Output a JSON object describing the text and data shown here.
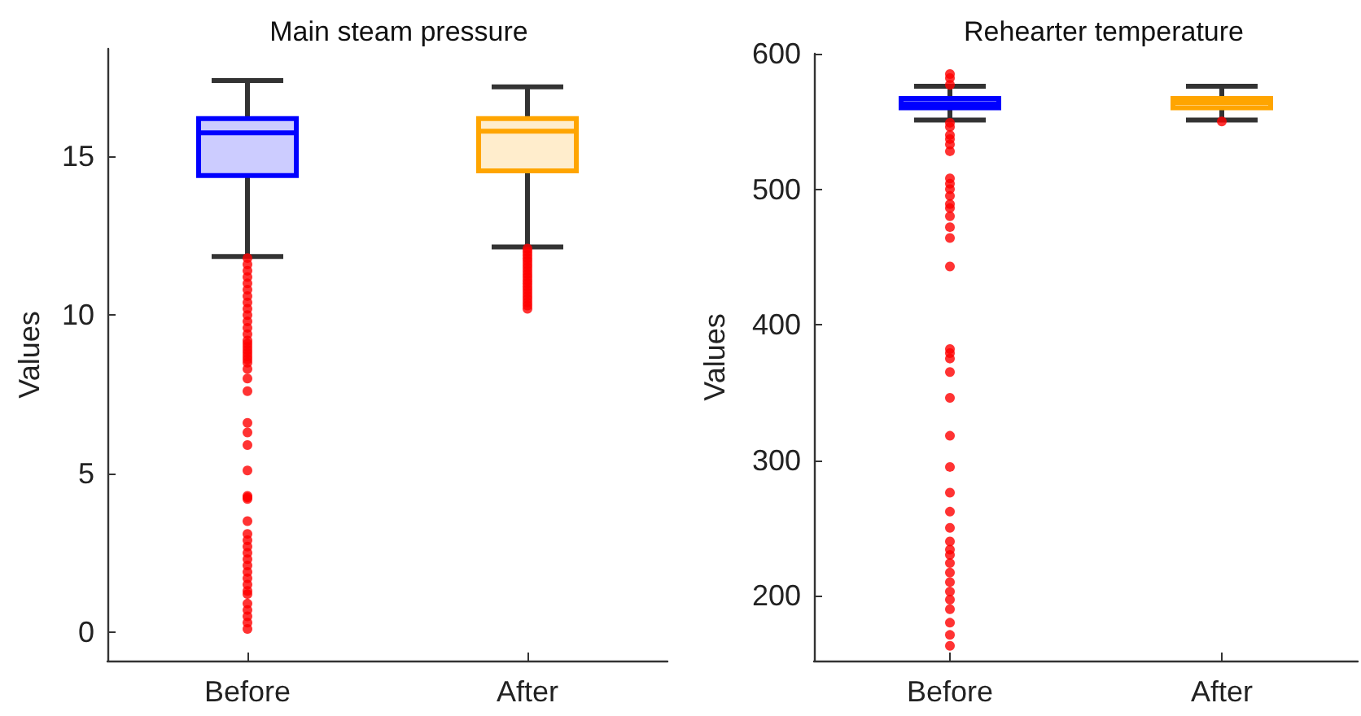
{
  "chart_data": [
    {
      "type": "box",
      "title": "Main steam pressure",
      "ylabel": "Values",
      "categories": [
        "Before",
        "After"
      ],
      "ylim": [
        -0.9,
        18.4
      ],
      "yticks": [
        0,
        5,
        10,
        15
      ],
      "grid": false,
      "series": [
        {
          "colors": [
            "#0000ff",
            "#ffa500"
          ],
          "boxes": [
            {
              "low": 11.85,
              "q1": 14.4,
              "median": 15.75,
              "q3": 16.2,
              "high": 17.4
            },
            {
              "low": 12.15,
              "q1": 14.55,
              "median": 15.8,
              "q3": 16.2,
              "high": 17.2
            }
          ]
        },
        {
          "type": "scatter",
          "color": "#ff0000",
          "marker": "circle",
          "x": [
            "Before",
            "Before",
            "Before",
            "Before",
            "Before",
            "Before",
            "Before",
            "Before",
            "Before",
            "Before",
            "Before",
            "Before",
            "Before",
            "Before",
            "Before",
            "Before",
            "Before",
            "Before",
            "Before",
            "Before",
            "Before",
            "Before",
            "Before",
            "Before",
            "Before",
            "Before",
            "Before",
            "Before",
            "Before",
            "Before",
            "Before",
            "Before",
            "Before",
            "Before",
            "Before",
            "Before",
            "Before",
            "Before",
            "Before",
            "Before",
            "Before",
            "Before",
            "Before",
            "Before",
            "Before",
            "Before",
            "Before",
            "Before",
            "After",
            "After",
            "After",
            "After",
            "After",
            "After",
            "After",
            "After",
            "After",
            "After",
            "After",
            "After",
            "After",
            "After",
            "After",
            "After",
            "After",
            "After",
            "After",
            "After"
          ],
          "values": [
            11.8,
            11.6,
            11.4,
            11.2,
            11.0,
            10.8,
            10.6,
            10.4,
            10.2,
            10.0,
            9.8,
            9.6,
            9.4,
            9.2,
            9.0,
            8.8,
            8.6,
            8.3,
            8.0,
            7.6,
            6.6,
            6.3,
            5.9,
            5.1,
            4.3,
            4.2,
            3.5,
            3.1,
            2.9,
            2.7,
            2.5,
            2.3,
            2.1,
            1.9,
            1.7,
            1.5,
            1.2,
            0.9,
            0.7,
            0.5,
            0.3,
            0.1,
            9.1,
            8.9,
            8.7,
            8.5,
            4.25,
            1.3,
            12.1,
            12.0,
            11.9,
            11.8,
            11.7,
            11.6,
            11.5,
            11.4,
            11.3,
            11.2,
            11.1,
            11.0,
            10.9,
            10.8,
            10.7,
            10.6,
            10.5,
            10.4,
            10.3,
            10.2
          ]
        }
      ]
    },
    {
      "type": "box",
      "title": "Rehearter temperature",
      "ylabel": "Values",
      "categories": [
        "Before",
        "After"
      ],
      "ylim": [
        152,
        600
      ],
      "yticks": [
        200,
        300,
        400,
        500,
        600
      ],
      "grid": false,
      "series": [
        {
          "colors": [
            "#0000ff",
            "#ffa500"
          ],
          "boxes": [
            {
              "low": 551,
              "q1": 560,
              "median": 563,
              "q3": 567,
              "high": 576
            },
            {
              "low": 551,
              "q1": 560,
              "median": 564,
              "q3": 567,
              "high": 576
            }
          ]
        },
        {
          "type": "scatter",
          "color": "#ff0000",
          "marker": "circle",
          "x": [
            "Before",
            "Before",
            "Before",
            "Before",
            "Before",
            "Before",
            "Before",
            "Before",
            "Before",
            "Before",
            "Before",
            "Before",
            "Before",
            "Before",
            "Before",
            "Before",
            "Before",
            "Before",
            "Before",
            "Before",
            "Before",
            "Before",
            "Before",
            "Before",
            "Before",
            "Before",
            "Before",
            "Before",
            "Before",
            "Before",
            "Before",
            "Before",
            "Before",
            "Before",
            "Before",
            "Before",
            "Before",
            "Before",
            "Before",
            "Before",
            "Before",
            "Before",
            "Before",
            "Before",
            "After"
          ],
          "values": [
            585,
            582,
            null,
            577,
            549,
            546,
            null,
            540,
            537,
            533,
            528,
            508,
            504,
            500,
            495,
            489,
            486,
            480,
            472,
            464,
            null,
            443,
            382,
            379,
            375,
            365,
            346,
            318,
            295,
            276,
            262,
            250,
            240,
            234,
            230,
            224,
            217,
            210,
            203,
            197,
            190,
            180,
            171,
            163,
            550
          ]
        }
      ]
    }
  ]
}
